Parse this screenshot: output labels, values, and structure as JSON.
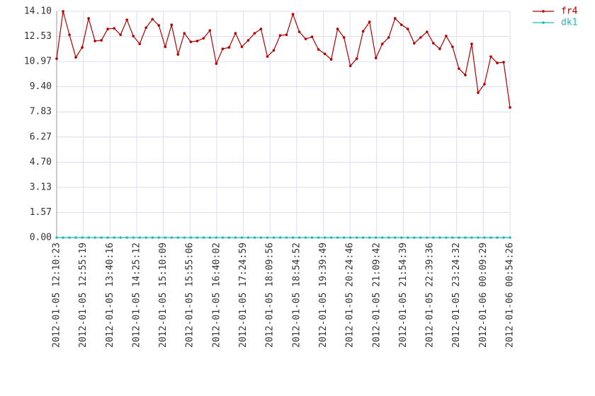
{
  "chart_data": {
    "type": "line",
    "x": [
      "2012-01-05 12:10:23",
      "2012-01-05 12:21:09",
      "2012-01-05 12:31:54",
      "2012-01-05 12:42:40",
      "2012-01-05 12:53:26",
      "2012-01-05 13:04:11",
      "2012-01-05 13:14:57",
      "2012-01-05 13:25:43",
      "2012-01-05 13:36:28",
      "2012-01-05 13:47:14",
      "2012-01-05 13:58:00",
      "2012-01-05 14:08:45",
      "2012-01-05 14:19:31",
      "2012-01-05 14:30:17",
      "2012-01-05 14:41:02",
      "2012-01-05 14:51:48",
      "2012-01-05 15:02:34",
      "2012-01-05 15:13:19",
      "2012-01-05 15:24:05",
      "2012-01-05 15:34:51",
      "2012-01-05 15:45:37",
      "2012-01-05 15:56:22",
      "2012-01-05 16:07:08",
      "2012-01-05 16:17:54",
      "2012-01-05 16:28:39",
      "2012-01-05 16:39:25",
      "2012-01-05 16:50:11",
      "2012-01-05 17:00:56",
      "2012-01-05 17:11:42",
      "2012-01-05 17:22:28",
      "2012-01-05 17:33:13",
      "2012-01-05 17:43:59",
      "2012-01-05 17:54:45",
      "2012-01-05 18:05:30",
      "2012-01-05 18:16:16",
      "2012-01-05 18:27:02",
      "2012-01-05 18:37:47",
      "2012-01-05 18:48:33",
      "2012-01-05 18:59:19",
      "2012-01-05 19:10:04",
      "2012-01-05 19:20:50",
      "2012-01-05 19:31:36",
      "2012-01-05 19:42:21",
      "2012-01-05 19:53:07",
      "2012-01-05 20:03:53",
      "2012-01-05 20:14:38",
      "2012-01-05 20:25:24",
      "2012-01-05 20:36:10",
      "2012-01-05 20:46:55",
      "2012-01-05 20:57:41",
      "2012-01-05 21:08:27",
      "2012-01-05 21:19:12",
      "2012-01-05 21:29:58",
      "2012-01-05 21:40:44",
      "2012-01-05 21:51:30",
      "2012-01-05 22:02:15",
      "2012-01-05 22:13:01",
      "2012-01-05 22:23:47",
      "2012-01-05 22:34:32",
      "2012-01-05 22:45:18",
      "2012-01-05 22:56:04",
      "2012-01-05 23:06:49",
      "2012-01-05 23:17:35",
      "2012-01-05 23:28:21",
      "2012-01-05 23:39:06",
      "2012-01-05 23:49:52",
      "2012-01-06 00:00:38",
      "2012-01-06 00:11:23",
      "2012-01-06 00:22:09",
      "2012-01-06 00:32:55",
      "2012-01-06 00:43:40",
      "2012-01-06 00:54:26"
    ],
    "series": [
      {
        "name": "fr4",
        "color": "#b00000",
        "values": [
          11.15,
          14.1,
          12.64,
          11.23,
          11.85,
          13.66,
          12.25,
          12.29,
          13.0,
          13.04,
          12.64,
          13.57,
          12.56,
          12.07,
          13.08,
          13.61,
          13.22,
          11.89,
          13.26,
          11.41,
          12.73,
          12.2,
          12.25,
          12.42,
          12.91,
          10.84,
          11.76,
          11.85,
          12.73,
          11.89,
          12.29,
          12.73,
          13.0,
          11.28,
          11.67,
          12.6,
          12.64,
          13.92,
          12.82,
          12.38,
          12.51,
          11.72,
          11.45,
          11.1,
          13.0,
          12.47,
          10.7,
          11.15,
          12.86,
          13.44,
          11.19,
          12.07,
          12.47,
          13.66,
          13.26,
          13.0,
          12.11,
          12.47,
          12.82,
          12.11,
          11.76,
          12.56,
          11.89,
          10.53,
          10.13,
          12.07,
          9.03,
          9.56,
          11.28,
          10.88,
          10.93,
          8.11
        ]
      },
      {
        "name": "dk1",
        "color": "#22b8b8",
        "values": [
          0,
          0,
          0,
          0,
          0,
          0,
          0,
          0,
          0,
          0,
          0,
          0,
          0,
          0,
          0,
          0,
          0,
          0,
          0,
          0,
          0,
          0,
          0,
          0,
          0,
          0,
          0,
          0,
          0,
          0,
          0,
          0,
          0,
          0,
          0,
          0,
          0,
          0,
          0,
          0,
          0,
          0,
          0,
          0,
          0,
          0,
          0,
          0,
          0,
          0,
          0,
          0,
          0,
          0,
          0,
          0,
          0,
          0,
          0,
          0,
          0,
          0,
          0,
          0,
          0,
          0,
          0,
          0,
          0,
          0,
          0,
          0
        ]
      }
    ],
    "xlim": [
      "2012-01-05 12:10:23",
      "2012-01-06 00:54:26"
    ],
    "xticks": [
      "2012-01-05 12:10:23",
      "2012-01-05 12:55:19",
      "2012-01-05 13:40:16",
      "2012-01-05 14:25:12",
      "2012-01-05 15:10:09",
      "2012-01-05 15:55:06",
      "2012-01-05 16:40:02",
      "2012-01-05 17:24:59",
      "2012-01-05 18:09:56",
      "2012-01-05 18:54:52",
      "2012-01-05 19:39:49",
      "2012-01-05 20:24:46",
      "2012-01-05 21:09:42",
      "2012-01-05 21:54:39",
      "2012-01-05 22:39:36",
      "2012-01-05 23:24:32",
      "2012-01-06 00:09:29",
      "2012-01-06 00:54:26"
    ],
    "ylim": [
      0,
      14.1
    ],
    "yticks": [
      {
        "value": 0,
        "label": "0.00"
      },
      {
        "value": 1.5667,
        "label": "1.57"
      },
      {
        "value": 3.1333,
        "label": "3.13"
      },
      {
        "value": 4.7,
        "label": "4.70"
      },
      {
        "value": 6.2667,
        "label": "6.27"
      },
      {
        "value": 7.8333,
        "label": "7.83"
      },
      {
        "value": 9.4,
        "label": "9.40"
      },
      {
        "value": 10.9667,
        "label": "10.97"
      },
      {
        "value": 12.5333,
        "label": "12.53"
      },
      {
        "value": 14.1,
        "label": "14.10"
      }
    ],
    "grid": true,
    "legend": "top-right"
  }
}
